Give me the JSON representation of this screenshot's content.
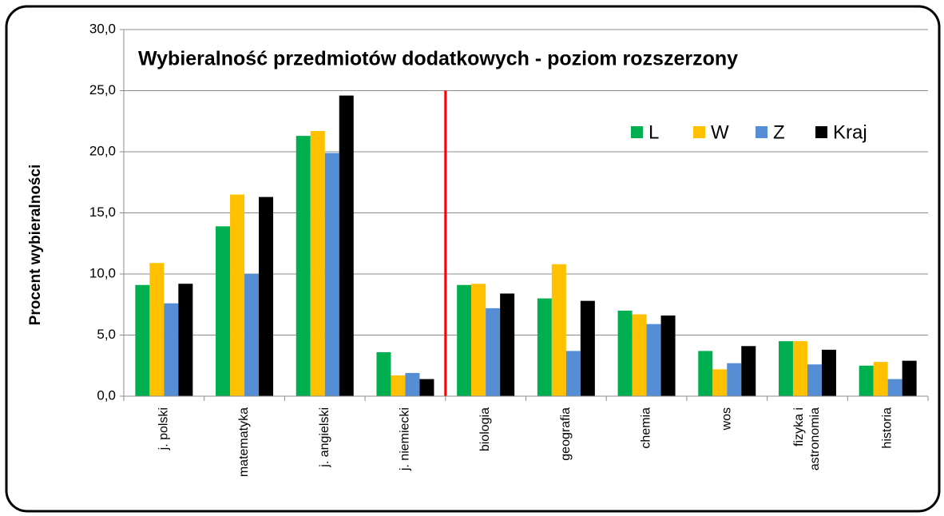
{
  "chart_data": {
    "type": "bar",
    "title": "Wybieralność  przedmiotów dodatkowych - poziom rozszerzony",
    "y_label": "Procent wybieralności",
    "categories": [
      "j. polski",
      "matematyka",
      "j. angielski",
      "j. niemiecki",
      "biologia",
      "geografia",
      "chemia",
      "wos",
      "fizyka i\nastronomia",
      "historia"
    ],
    "series": [
      {
        "name": "L",
        "color": "#00b050",
        "values": [
          9.1,
          13.9,
          21.3,
          3.6,
          9.1,
          8.0,
          7.0,
          3.7,
          4.5,
          2.5
        ]
      },
      {
        "name": "W",
        "color": "#ffc000",
        "values": [
          10.9,
          16.5,
          21.7,
          1.7,
          9.2,
          10.8,
          6.7,
          2.2,
          4.5,
          2.8
        ]
      },
      {
        "name": "Z",
        "color": "#558ed5",
        "values": [
          7.6,
          10.0,
          19.9,
          1.9,
          7.2,
          3.7,
          5.9,
          2.7,
          2.6,
          1.4
        ]
      },
      {
        "name": "Kraj",
        "color": "#000000",
        "values": [
          9.2,
          16.3,
          24.6,
          1.4,
          8.4,
          7.8,
          6.6,
          4.1,
          3.8,
          2.9
        ]
      }
    ],
    "ylim": [
      0,
      30
    ],
    "yticks": [
      {
        "value": 0,
        "label": "0,0"
      },
      {
        "value": 5,
        "label": "5,0"
      },
      {
        "value": 10,
        "label": "10,0"
      },
      {
        "value": 15,
        "label": "15,0"
      },
      {
        "value": 20,
        "label": "20,0"
      },
      {
        "value": 25,
        "label": "25,0"
      },
      {
        "value": 30,
        "label": "30,0"
      }
    ],
    "grid": true,
    "legend": "upper right"
  }
}
